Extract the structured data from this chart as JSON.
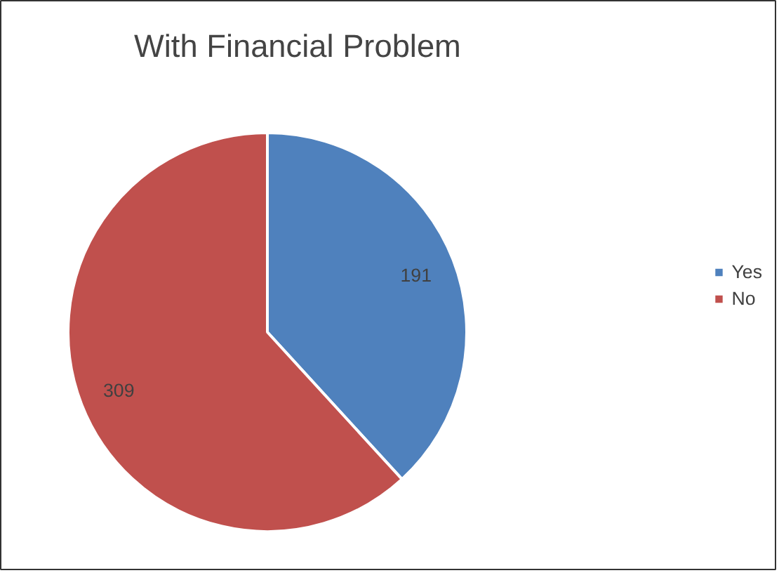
{
  "chart_data": {
    "type": "pie",
    "title": "With Financial Problem",
    "categories": [
      "Yes",
      "No"
    ],
    "values": [
      191,
      309
    ],
    "colors": [
      "#4f81bd",
      "#c0504d"
    ],
    "data_labels": true,
    "legend": "right"
  }
}
